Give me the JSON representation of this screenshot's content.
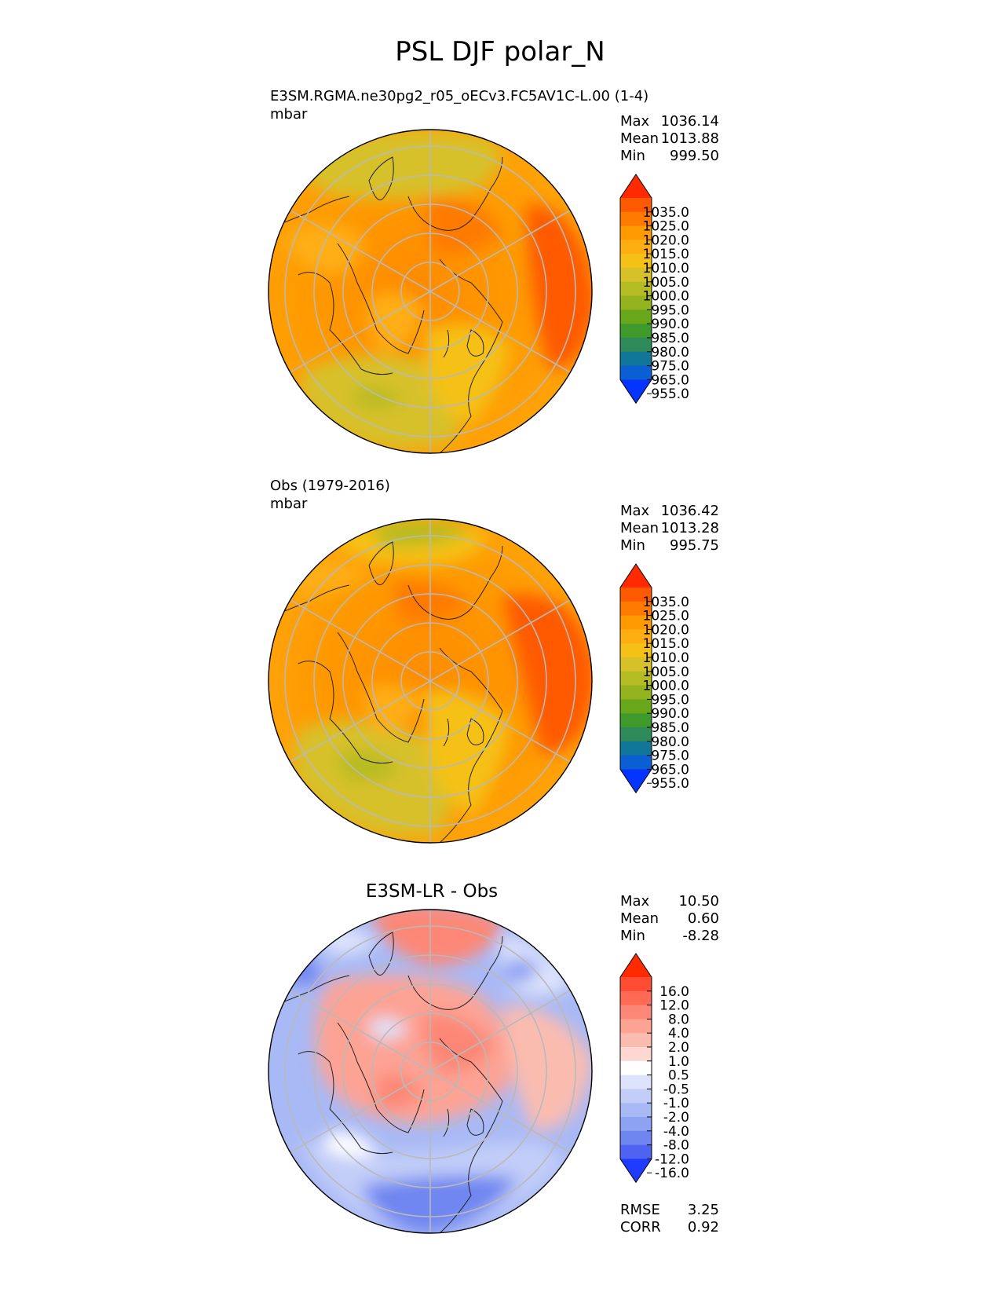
{
  "chart_data": {
    "type": "heatmap",
    "title": "PSL DJF polar_N",
    "projection": "north-polar-stereographic",
    "panels": [
      {
        "id": "test",
        "title": "E3SM.RGMA.ne30pg2_r05_oECv3.FC5AV1C-L.00 (1-4)",
        "units": "mbar",
        "stats": [
          {
            "label": "Max",
            "value": "1036.14"
          },
          {
            "label": "Mean",
            "value": "1013.88"
          },
          {
            "label": "Min",
            "value": "999.50"
          }
        ],
        "colorbar_ticks": [
          "1035.0",
          "1025.0",
          "1020.0",
          "1015.0",
          "1010.0",
          "1005.0",
          "1000.0",
          "995.0",
          "990.0",
          "985.0",
          "980.0",
          "975.0",
          "965.0",
          "955.0"
        ],
        "colors": [
          "#ff2a00",
          "#ff5a00",
          "#ff7a00",
          "#ff9a00",
          "#ffae12",
          "#f5c116",
          "#d7c12a",
          "#b5bb22",
          "#95b21f",
          "#68a61a",
          "#3e9a2a",
          "#2f8a5a",
          "#10769a",
          "#0a5fd2",
          "#0533ff"
        ]
      },
      {
        "id": "ref",
        "title": "Obs (1979-2016)",
        "units": "mbar",
        "stats": [
          {
            "label": "Max",
            "value": "1036.42"
          },
          {
            "label": "Mean",
            "value": "1013.28"
          },
          {
            "label": "Min",
            "value": "995.75"
          }
        ],
        "colorbar_ticks": [
          "1035.0",
          "1025.0",
          "1020.0",
          "1015.0",
          "1010.0",
          "1005.0",
          "1000.0",
          "995.0",
          "990.0",
          "985.0",
          "980.0",
          "975.0",
          "965.0",
          "955.0"
        ],
        "colors": [
          "#ff2a00",
          "#ff5a00",
          "#ff7a00",
          "#ff9a00",
          "#ffae12",
          "#f5c116",
          "#d7c12a",
          "#b5bb22",
          "#95b21f",
          "#68a61a",
          "#3e9a2a",
          "#2f8a5a",
          "#10769a",
          "#0a5fd2",
          "#0533ff"
        ]
      },
      {
        "id": "diff",
        "title": "E3SM-LR - Obs",
        "units": "",
        "stats": [
          {
            "label": "Max",
            "value": "10.50"
          },
          {
            "label": "Mean",
            "value": "0.60"
          },
          {
            "label": "Min",
            "value": "-8.28"
          }
        ],
        "extra_stats": [
          {
            "label": "RMSE",
            "value": "3.25"
          },
          {
            "label": "CORR",
            "value": "0.92"
          }
        ],
        "colorbar_ticks": [
          "16.0",
          "12.0",
          "8.0",
          "4.0",
          "2.0",
          "1.0",
          "0.5",
          "-0.5",
          "-1.0",
          "-2.0",
          "-4.0",
          "-8.0",
          "-12.0",
          "-16.0"
        ],
        "colors": [
          "#ff2a00",
          "#ff4d33",
          "#ff6a55",
          "#fd8776",
          "#fda394",
          "#fbbcb0",
          "#fcd8d0",
          "#ffffff",
          "#dde3fb",
          "#c2cdf8",
          "#a9b9f5",
          "#8ea2f2",
          "#6f86f0",
          "#4f63f3",
          "#1f3bff"
        ]
      }
    ]
  }
}
